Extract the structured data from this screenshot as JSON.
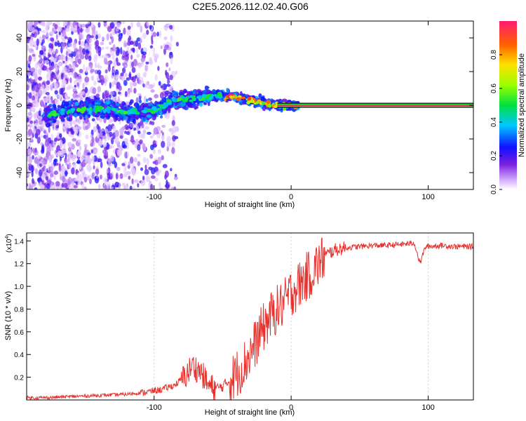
{
  "title": "C2E5.2026.112.02.40.G06",
  "chart_data": [
    {
      "type": "heatmap",
      "xlabel": "Height of straight line (km)",
      "ylabel": "Frequency (Hz)",
      "xlim": [
        -193,
        133
      ],
      "ylim": [
        -50,
        50
      ],
      "xticks": [
        -100,
        0,
        100
      ],
      "yticks": [
        -40,
        -20,
        0,
        20,
        40
      ],
      "colorbar": {
        "label": "Normalized spectral amplitude",
        "range": [
          0,
          1
        ],
        "ticks": [
          0.0,
          0.2,
          0.4,
          0.6,
          0.8
        ]
      },
      "signal_track": [
        {
          "x": -178,
          "y": -6
        },
        {
          "x": -160,
          "y": -3
        },
        {
          "x": -140,
          "y": -2
        },
        {
          "x": -120,
          "y": -4
        },
        {
          "x": -100,
          "y": -3
        },
        {
          "x": -85,
          "y": 3
        },
        {
          "x": -70,
          "y": 4
        },
        {
          "x": -55,
          "y": 6
        },
        {
          "x": -40,
          "y": 5
        },
        {
          "x": -25,
          "y": 2
        },
        {
          "x": -10,
          "y": 0
        },
        {
          "x": 5,
          "y": 0
        },
        {
          "x": 133,
          "y": 0
        }
      ],
      "steady_line": {
        "x_start": -10,
        "x_end": 133,
        "y": 0
      }
    },
    {
      "type": "line",
      "xlabel": "Height of straight line (km)",
      "ylabel": "SNR (10 * v/v)",
      "scale_label": "(x10",
      "scale_exp": "4",
      "scale_close": ")",
      "xlim": [
        -193,
        133
      ],
      "ylim": [
        0,
        1.47
      ],
      "xticks": [
        -100,
        0,
        100
      ],
      "yticks": [
        0.2,
        0.4,
        0.6,
        0.8,
        1.0,
        1.2,
        1.4
      ],
      "series": [
        {
          "name": "SNR",
          "color": "#e8302c",
          "x": [
            -193,
            -180,
            -160,
            -140,
            -120,
            -105,
            -95,
            -85,
            -78,
            -72,
            -66,
            -60,
            -55,
            -50,
            -42,
            -35,
            -28,
            -22,
            -16,
            -10,
            -5,
            0,
            5,
            10,
            15,
            20,
            25,
            30,
            35,
            40,
            50,
            60,
            70,
            80,
            90,
            94,
            98,
            110,
            120,
            133
          ],
          "y": [
            0.02,
            0.02,
            0.03,
            0.04,
            0.05,
            0.07,
            0.09,
            0.13,
            0.2,
            0.3,
            0.25,
            0.12,
            0.1,
            0.12,
            0.2,
            0.3,
            0.45,
            0.6,
            0.72,
            0.8,
            0.85,
            0.95,
            1.0,
            1.07,
            1.12,
            1.2,
            1.27,
            1.31,
            1.33,
            1.34,
            1.35,
            1.36,
            1.36,
            1.37,
            1.38,
            1.2,
            1.35,
            1.36,
            1.35,
            1.35
          ]
        }
      ]
    }
  ]
}
